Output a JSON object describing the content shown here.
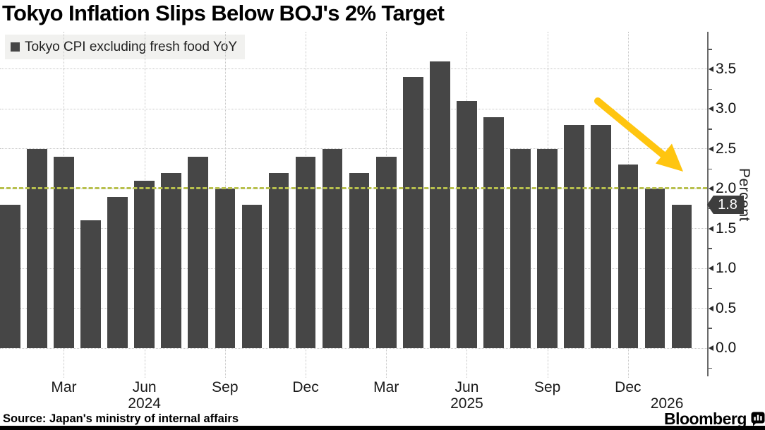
{
  "title": "Tokyo Inflation Slips Below BOJ's 2% Target",
  "legend": {
    "label": "Tokyo CPI excluding fresh food YoY"
  },
  "source": "Source: Japan's ministry of internal affairs",
  "branding": {
    "name": "Bloomberg",
    "icon": "bloomberg-chart-bubble-icon"
  },
  "colors": {
    "bar": "#464646",
    "badge": "#3d3d3d",
    "target_line": "#b8c04d",
    "arrow": "#ffc510",
    "grid": "#c6c6c6",
    "legend_bg": "#f1f1ef"
  },
  "chart_data": {
    "type": "bar",
    "title": "Tokyo Inflation Slips Below BOJ's 2% Target",
    "series_name": "Tokyo CPI excluding fresh food YoY",
    "categories": [
      "Jan 2024",
      "Feb 2024",
      "Mar 2024",
      "Apr 2024",
      "May 2024",
      "Jun 2024",
      "Jul 2024",
      "Aug 2024",
      "Sep 2024",
      "Oct 2024",
      "Nov 2024",
      "Dec 2024",
      "Jan 2025",
      "Feb 2025",
      "Mar 2025",
      "Apr 2025",
      "May 2025",
      "Jun 2025",
      "Jul 2025",
      "Aug 2025",
      "Sep 2025",
      "Oct 2025",
      "Nov 2025",
      "Dec 2025",
      "Jan 2026",
      "Feb 2026"
    ],
    "values": [
      1.8,
      2.5,
      2.4,
      1.6,
      1.9,
      2.1,
      2.2,
      2.4,
      2.0,
      1.8,
      2.2,
      2.4,
      2.5,
      2.2,
      2.4,
      3.4,
      3.6,
      3.1,
      2.9,
      2.5,
      2.5,
      2.8,
      2.8,
      2.3,
      2.0,
      1.8
    ],
    "xlabel": "",
    "ylabel": "Percent",
    "ylim": [
      0,
      4.0
    ],
    "y_tick_labels": [
      "3.5",
      "3.0",
      "2.5",
      "2.0",
      "1.5",
      "1.0",
      "0.5",
      "0.0"
    ],
    "x_tick_labels": [
      {
        "index": 2,
        "label": "Mar"
      },
      {
        "index": 5,
        "label": "Jun"
      },
      {
        "index": 8,
        "label": "Sep"
      },
      {
        "index": 11,
        "label": "Dec"
      },
      {
        "index": 14,
        "label": "Mar"
      },
      {
        "index": 17,
        "label": "Jun"
      },
      {
        "index": 20,
        "label": "Sep"
      },
      {
        "index": 23,
        "label": "Dec"
      }
    ],
    "year_labels": [
      {
        "index": 5,
        "label": "2024"
      },
      {
        "index": 17,
        "label": "2025"
      },
      {
        "index": 24.45,
        "label": "2026"
      }
    ],
    "target_line": 2.0,
    "last_value_label": "1.8",
    "grid": true,
    "legend_position": "top-left",
    "annotation": "yellow arrow pointing down-right over late-2025 bars"
  }
}
